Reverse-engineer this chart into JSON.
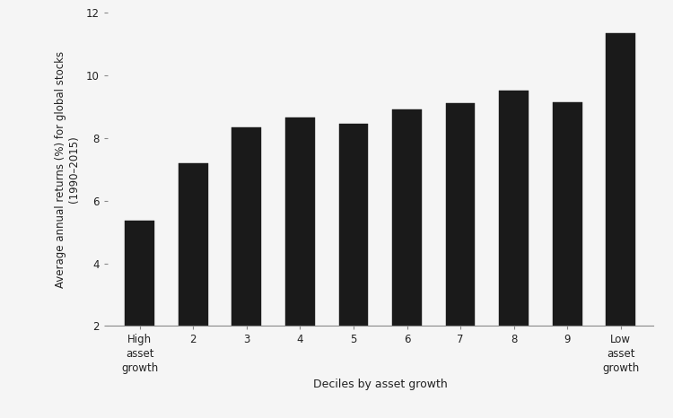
{
  "categories": [
    "High\nasset\ngrowth",
    "2",
    "3",
    "4",
    "5",
    "6",
    "7",
    "8",
    "9",
    "Low\nasset\ngrowth"
  ],
  "values": [
    5.35,
    7.2,
    8.35,
    8.65,
    8.45,
    8.9,
    9.1,
    9.5,
    9.15,
    11.35
  ],
  "bar_color": "#1a1a1a",
  "xlabel": "Deciles by asset growth",
  "ylabel": "Average annual returns (%) for global stocks\n(1990–2015)",
  "ylim": [
    2,
    12
  ],
  "yticks": [
    2,
    4,
    6,
    8,
    10,
    12
  ],
  "background_color": "#f5f5f5",
  "bar_edge_color": "#1a1a1a",
  "bar_width": 0.55
}
